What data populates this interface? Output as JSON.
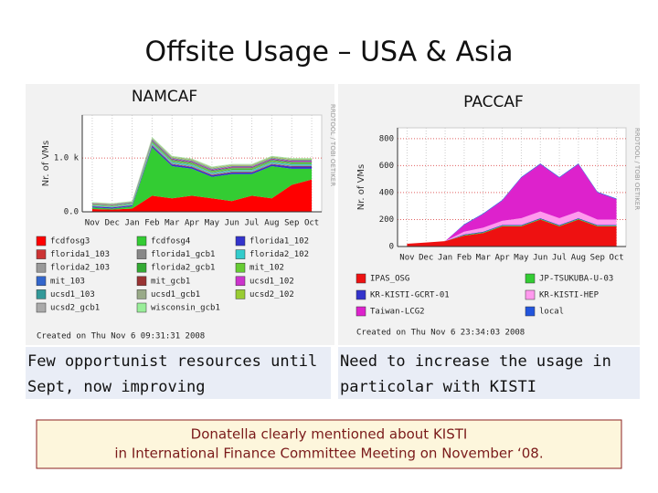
{
  "title": "Offsite Usage – USA & Asia",
  "captions": [
    [
      "Few opportunist resources  until",
      "Sept, now improving"
    ],
    [
      "Need to increase the usage in",
      "particolar with KISTI"
    ]
  ],
  "note": [
    "Donatella clearly mentioned about KISTI",
    "in International Finance Committee Meeting on November ‘08."
  ],
  "chart_data": [
    {
      "type": "area",
      "title": "NAMCAF",
      "y_label": "Nr. of VMs",
      "watermark": "RRDTOOL / TOBI OETIKER",
      "categories": [
        "Nov",
        "Dec",
        "Jan",
        "Feb",
        "Mar",
        "Apr",
        "May",
        "Jun",
        "Jul",
        "Aug",
        "Sep",
        "Oct"
      ],
      "ylim": [
        0,
        1800
      ],
      "yticks": [
        {
          "value": 0,
          "label": "0.0"
        },
        {
          "value": 1000,
          "label": "1.0 k"
        }
      ],
      "grid": true,
      "created": "Created on Thu Nov  6 09:31:31 2008",
      "series": [
        {
          "name": "fcdfosg3",
          "color": "#ff0000",
          "values": [
            50,
            40,
            60,
            300,
            250,
            300,
            250,
            200,
            300,
            250,
            500,
            600
          ]
        },
        {
          "name": "fcdfosg4",
          "color": "#33cc33",
          "values": [
            30,
            20,
            40,
            900,
            600,
            500,
            400,
            500,
            400,
            600,
            300,
            200
          ]
        },
        {
          "name": "florida1_102",
          "color": "#3333cc",
          "values": [
            20,
            20,
            20,
            30,
            30,
            30,
            30,
            30,
            30,
            30,
            40,
            40
          ]
        },
        {
          "name": "florida1_103",
          "color": "#cc3333",
          "values": [
            5,
            5,
            5,
            10,
            10,
            10,
            10,
            10,
            10,
            10,
            10,
            10
          ]
        },
        {
          "name": "florida1_gcb1",
          "color": "#888888",
          "values": [
            5,
            5,
            5,
            10,
            10,
            10,
            10,
            10,
            10,
            10,
            10,
            10
          ]
        },
        {
          "name": "florida2_102",
          "color": "#33cccc",
          "values": [
            10,
            10,
            10,
            20,
            20,
            20,
            20,
            20,
            20,
            20,
            20,
            20
          ]
        },
        {
          "name": "florida2_103",
          "color": "#999999",
          "values": [
            5,
            5,
            5,
            10,
            10,
            10,
            10,
            10,
            10,
            10,
            10,
            10
          ]
        },
        {
          "name": "florida2_gcb1",
          "color": "#33aa33",
          "values": [
            5,
            5,
            5,
            10,
            10,
            10,
            10,
            10,
            10,
            10,
            10,
            10
          ]
        },
        {
          "name": "mit_102",
          "color": "#66cc33",
          "values": [
            10,
            10,
            10,
            20,
            20,
            20,
            20,
            20,
            20,
            20,
            20,
            20
          ]
        },
        {
          "name": "mit_103",
          "color": "#3366cc",
          "values": [
            5,
            5,
            5,
            10,
            10,
            10,
            10,
            10,
            10,
            10,
            10,
            10
          ]
        },
        {
          "name": "mit_gcb1",
          "color": "#993333",
          "values": [
            5,
            5,
            5,
            10,
            10,
            10,
            10,
            10,
            10,
            10,
            10,
            10
          ]
        },
        {
          "name": "ucsd1_102",
          "color": "#cc33cc",
          "values": [
            5,
            5,
            5,
            10,
            10,
            10,
            10,
            10,
            10,
            10,
            10,
            10
          ]
        },
        {
          "name": "ucsd1_103",
          "color": "#339999",
          "values": [
            5,
            5,
            5,
            10,
            10,
            10,
            10,
            10,
            10,
            10,
            10,
            10
          ]
        },
        {
          "name": "ucsd1_gcb1",
          "color": "#99aa88",
          "values": [
            5,
            5,
            5,
            10,
            10,
            10,
            10,
            10,
            10,
            10,
            10,
            10
          ]
        },
        {
          "name": "ucsd2_102",
          "color": "#99cc33",
          "values": [
            5,
            5,
            5,
            10,
            10,
            10,
            10,
            10,
            10,
            10,
            10,
            10
          ]
        },
        {
          "name": "ucsd2_gcb1",
          "color": "#aaaaaa",
          "values": [
            5,
            5,
            5,
            10,
            10,
            10,
            10,
            10,
            10,
            10,
            10,
            10
          ]
        },
        {
          "name": "wisconsin_gcb1",
          "color": "#99ee99",
          "values": [
            5,
            5,
            5,
            10,
            10,
            10,
            10,
            10,
            10,
            10,
            10,
            10
          ]
        }
      ]
    },
    {
      "type": "area",
      "title": "PACCAF",
      "y_label": "Nr. of VMs",
      "watermark": "RRDTOOL / TOBI OETIKER",
      "categories": [
        "Nov",
        "Dec",
        "Jan",
        "Feb",
        "Mar",
        "Apr",
        "May",
        "Jun",
        "Jul",
        "Aug",
        "Sep",
        "Oct"
      ],
      "ylim": [
        0,
        880
      ],
      "yticks": [
        0,
        200,
        400,
        600,
        800
      ],
      "grid": true,
      "created": "Created on Thu Nov  6 23:34:03 2008",
      "series": [
        {
          "name": "IPAS_OSG",
          "color": "#ee1111",
          "values": [
            20,
            30,
            40,
            80,
            100,
            150,
            150,
            200,
            150,
            200,
            150,
            150
          ]
        },
        {
          "name": "JP-TSUKUBA-U-03",
          "color": "#33cc33",
          "values": [
            0,
            0,
            0,
            5,
            5,
            5,
            5,
            5,
            5,
            5,
            5,
            5
          ]
        },
        {
          "name": "KR-KISTI-GCRT-01",
          "color": "#3333cc",
          "values": [
            0,
            0,
            0,
            5,
            5,
            5,
            5,
            5,
            5,
            5,
            5,
            5
          ]
        },
        {
          "name": "KR-KISTI-HEP",
          "color": "#ff99ee",
          "values": [
            0,
            0,
            0,
            20,
            30,
            30,
            50,
            50,
            50,
            50,
            40,
            40
          ]
        },
        {
          "name": "Taiwan-LCG2",
          "color": "#dd22cc",
          "values": [
            0,
            0,
            0,
            50,
            100,
            150,
            300,
            350,
            300,
            350,
            200,
            150
          ]
        },
        {
          "name": "local",
          "color": "#2255dd",
          "values": [
            0,
            0,
            0,
            5,
            5,
            5,
            5,
            5,
            5,
            5,
            5,
            5
          ]
        }
      ]
    }
  ]
}
